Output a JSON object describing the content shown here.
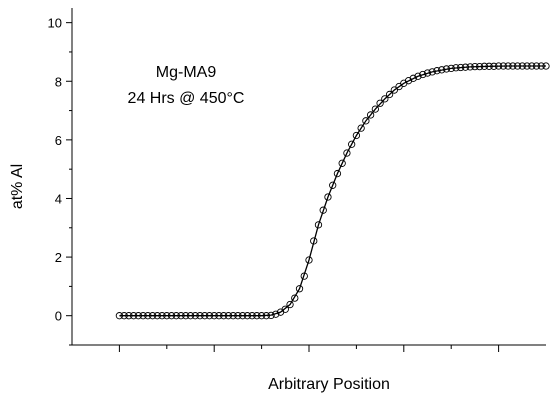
{
  "chart_data": {
    "type": "scatter",
    "title": "",
    "annotation_lines": [
      "Mg-MA9",
      "24 Hrs @ 450°C"
    ],
    "xlabel": "Arbitrary Position",
    "ylabel": "at% Al",
    "xlim": [
      -1.0,
      9.0
    ],
    "ylim": [
      -1.0,
      10.5
    ],
    "x_ticks": [
      0,
      2,
      4,
      6,
      8
    ],
    "x_minor_ticks": [
      1,
      3,
      5,
      7
    ],
    "x_tick_labels_shown": false,
    "y_ticks": [
      0,
      2,
      4,
      6,
      8,
      10
    ],
    "y_tick_labels": [
      "0",
      "2",
      "4",
      "6",
      "8",
      "10"
    ],
    "y_minor_ticks": [
      -1,
      1,
      3,
      5,
      7,
      9
    ],
    "grid": false,
    "legend": "none",
    "series": [
      {
        "style": "open-circle-markers",
        "x": [
          0.0,
          0.1,
          0.2,
          0.3,
          0.4,
          0.5,
          0.6,
          0.7,
          0.8,
          0.9,
          1.0,
          1.1,
          1.2,
          1.3,
          1.4,
          1.5,
          1.6,
          1.7,
          1.8,
          1.9,
          2.0,
          2.1,
          2.2,
          2.3,
          2.4,
          2.5,
          2.6,
          2.7,
          2.8,
          2.9,
          3.0,
          3.1,
          3.2,
          3.3,
          3.4,
          3.5,
          3.6,
          3.7,
          3.8,
          3.9,
          4.0,
          4.1,
          4.2,
          4.3,
          4.4,
          4.5,
          4.6,
          4.7,
          4.8,
          4.9,
          5.0,
          5.1,
          5.2,
          5.3,
          5.4,
          5.5,
          5.6,
          5.7,
          5.8,
          5.9,
          6.0,
          6.1,
          6.2,
          6.3,
          6.4,
          6.5,
          6.6,
          6.7,
          6.8,
          6.9,
          7.0,
          7.1,
          7.2,
          7.3,
          7.4,
          7.5,
          7.6,
          7.7,
          7.8,
          7.9,
          8.0,
          8.1,
          8.2,
          8.3,
          8.4,
          8.5,
          8.6,
          8.7,
          8.8,
          8.9,
          9.0
        ],
        "y": [
          0.0,
          0.0,
          0.0,
          0.0,
          0.0,
          0.0,
          0.0,
          0.0,
          0.0,
          0.0,
          0.0,
          0.0,
          0.0,
          0.0,
          0.0,
          0.0,
          0.0,
          0.0,
          0.0,
          0.0,
          0.0,
          0.0,
          0.0,
          0.0,
          0.0,
          0.0,
          0.0,
          0.0,
          0.0,
          0.0,
          0.0,
          0.0,
          0.01,
          0.05,
          0.12,
          0.22,
          0.38,
          0.6,
          0.92,
          1.35,
          1.9,
          2.55,
          3.1,
          3.6,
          4.05,
          4.45,
          4.85,
          5.2,
          5.55,
          5.85,
          6.15,
          6.4,
          6.65,
          6.85,
          7.05,
          7.25,
          7.4,
          7.55,
          7.7,
          7.82,
          7.93,
          8.02,
          8.1,
          8.17,
          8.23,
          8.28,
          8.32,
          8.36,
          8.39,
          8.42,
          8.44,
          8.46,
          8.47,
          8.48,
          8.49,
          8.5,
          8.5,
          8.51,
          8.51,
          8.51,
          8.52,
          8.52,
          8.52,
          8.52,
          8.52,
          8.52,
          8.52,
          8.52,
          8.52,
          8.52,
          8.52
        ]
      },
      {
        "style": "solid-line",
        "x": [
          0.0,
          0.5,
          1.0,
          1.5,
          2.0,
          2.5,
          2.8,
          3.0,
          3.2,
          3.4,
          3.6,
          3.8,
          4.0,
          4.2,
          4.4,
          4.6,
          4.8,
          5.0,
          5.2,
          5.4,
          5.6,
          5.8,
          6.0,
          6.3,
          6.6,
          7.0,
          7.4,
          7.8,
          8.2,
          8.6,
          9.0
        ],
        "y": [
          0.0,
          0.0,
          0.0,
          0.0,
          0.0,
          0.0,
          0.0,
          0.0,
          0.02,
          0.12,
          0.38,
          0.92,
          1.9,
          3.1,
          4.05,
          4.85,
          5.55,
          6.15,
          6.65,
          7.05,
          7.4,
          7.7,
          7.93,
          8.17,
          8.32,
          8.44,
          8.49,
          8.51,
          8.52,
          8.52,
          8.52
        ]
      }
    ]
  }
}
